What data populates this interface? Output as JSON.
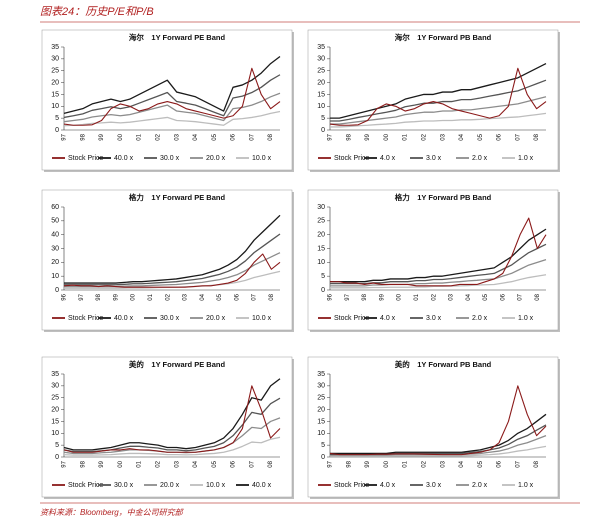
{
  "header": {
    "title": "图表24：历史P/E和P/B"
  },
  "chart_data": [
    {
      "type": "line",
      "title": "海尔　1Y Forward PE Band",
      "categories": [
        "97",
        null,
        "98",
        null,
        "99",
        null,
        "00",
        null,
        "01",
        null,
        "02",
        null,
        "03",
        null,
        "04",
        null,
        "05",
        null,
        "06",
        null,
        "07",
        null,
        "08",
        null
      ],
      "ylim": [
        0,
        35
      ],
      "yticks": [
        0,
        5,
        10,
        15,
        20,
        25,
        30,
        35
      ],
      "series": [
        {
          "name": "Stock Price",
          "color": "#8b1a1a",
          "values": [
            2.5,
            2,
            2,
            2.2,
            4,
            9,
            11,
            10,
            8,
            9,
            11,
            12,
            11,
            9,
            8,
            7,
            6,
            5,
            6,
            10,
            26,
            15,
            9,
            12
          ]
        },
        {
          "name": "40.0 x",
          "color": "#1a1a1a",
          "values": [
            7,
            8,
            9,
            11,
            12,
            13,
            12,
            13,
            15,
            17,
            19,
            21,
            16,
            15,
            14,
            12,
            10,
            8,
            18,
            19,
            21,
            24,
            28,
            31
          ]
        },
        {
          "name": "30.0 x",
          "color": "#555555",
          "values": [
            5.3,
            6,
            6.8,
            8.3,
            9,
            9.8,
            9,
            9.8,
            11.3,
            12.8,
            14.3,
            15.8,
            12,
            11.3,
            10.5,
            9,
            7.5,
            6,
            13.5,
            14.3,
            15.8,
            18,
            21,
            23.3
          ]
        },
        {
          "name": "20.0 x",
          "color": "#8c8c8c",
          "values": [
            3.5,
            4,
            4.5,
            5.5,
            6,
            6.5,
            6,
            6.5,
            7.5,
            8.5,
            9.5,
            10.5,
            8,
            7.5,
            7,
            6,
            5,
            4,
            9,
            9.5,
            10.5,
            12,
            14,
            15.5
          ]
        },
        {
          "name": "10.0 x",
          "color": "#bdbdbd",
          "values": [
            1.8,
            2,
            2.3,
            2.8,
            3,
            3.3,
            3,
            3.3,
            3.8,
            4.3,
            4.8,
            5.3,
            4,
            3.8,
            3.5,
            3,
            2.5,
            2,
            4.5,
            4.8,
            5.3,
            6,
            7,
            7.8
          ]
        }
      ]
    },
    {
      "type": "line",
      "title": "海尔　1Y Forward PB Band",
      "categories": [
        "97",
        null,
        "98",
        null,
        "99",
        null,
        "00",
        null,
        "01",
        null,
        "02",
        null,
        "03",
        null,
        "04",
        null,
        "05",
        null,
        "06",
        null,
        "07",
        null,
        "08",
        null
      ],
      "ylim": [
        0,
        35
      ],
      "yticks": [
        0,
        5,
        10,
        15,
        20,
        25,
        30,
        35
      ],
      "series": [
        {
          "name": "Stock Price",
          "color": "#8b1a1a",
          "values": [
            2.5,
            2,
            2,
            2.2,
            4,
            9,
            11,
            10,
            8,
            9,
            11,
            12,
            11,
            9,
            8,
            7,
            6,
            5,
            6,
            10,
            26,
            15,
            9,
            12
          ]
        },
        {
          "name": "4.0 x",
          "color": "#1a1a1a",
          "values": [
            5,
            5,
            6,
            7,
            8,
            9,
            10,
            11,
            13,
            14,
            15,
            15,
            16,
            16,
            17,
            17,
            18,
            19,
            20,
            21,
            22,
            24,
            26,
            28
          ]
        },
        {
          "name": "3.0 x",
          "color": "#555555",
          "values": [
            3.8,
            3.8,
            4.5,
            5.3,
            6,
            6.8,
            7.5,
            8.3,
            9.8,
            10.5,
            11.3,
            11.3,
            12,
            12,
            12.8,
            12.8,
            13.5,
            14.3,
            15,
            15.8,
            16.5,
            18,
            19.5,
            21
          ]
        },
        {
          "name": "2.0 x",
          "color": "#8c8c8c",
          "values": [
            2.5,
            2.5,
            3,
            3.5,
            4,
            4.5,
            5,
            5.5,
            6.5,
            7,
            7.5,
            7.5,
            8,
            8,
            8.5,
            8.5,
            9,
            9.5,
            10,
            10.5,
            11,
            12,
            13,
            14
          ]
        },
        {
          "name": "1.0 x",
          "color": "#bdbdbd",
          "values": [
            1.3,
            1.3,
            1.5,
            1.8,
            2,
            2.3,
            2.5,
            2.8,
            3.3,
            3.5,
            3.8,
            3.8,
            4,
            4,
            4.3,
            4.3,
            4.5,
            4.8,
            5,
            5.3,
            5.5,
            6,
            6.5,
            7
          ]
        }
      ]
    },
    {
      "type": "line",
      "title": "格力　1Y Forward PE Band",
      "categories": [
        "96",
        null,
        "97",
        null,
        "98",
        null,
        "99",
        null,
        "00",
        null,
        "01",
        null,
        "02",
        null,
        "03",
        null,
        "04",
        null,
        "05",
        null,
        "06",
        null,
        "07",
        null,
        "08",
        null
      ],
      "ylim": [
        0,
        60
      ],
      "yticks": [
        0,
        10,
        20,
        30,
        40,
        50,
        60
      ],
      "series": [
        {
          "name": "Stock Price",
          "color": "#8b1a1a",
          "values": [
            3,
            3.5,
            3,
            3,
            2.5,
            3,
            2.5,
            2,
            2,
            2,
            2,
            2,
            2,
            2,
            2,
            2.5,
            3,
            3,
            4,
            5,
            7,
            12,
            20,
            26,
            15,
            20
          ]
        },
        {
          "name": "40.0 x",
          "color": "#1a1a1a",
          "values": [
            5,
            5,
            5,
            5,
            5,
            5,
            5,
            5.5,
            6,
            6,
            6.5,
            7,
            7.5,
            8,
            9,
            10,
            11,
            13,
            15,
            18,
            22,
            28,
            36,
            42,
            48,
            54
          ]
        },
        {
          "name": "30.0 x",
          "color": "#555555",
          "values": [
            3.8,
            3.8,
            3.8,
            3.8,
            3.8,
            3.8,
            3.8,
            4.1,
            4.5,
            4.5,
            4.9,
            5.3,
            5.6,
            6,
            6.8,
            7.5,
            8.3,
            9.8,
            11.3,
            13.5,
            16.5,
            21,
            27,
            31.5,
            36,
            40.5
          ]
        },
        {
          "name": "20.0 x",
          "color": "#8c8c8c",
          "values": [
            2.5,
            2.5,
            2.5,
            2.5,
            2.5,
            2.5,
            2.5,
            2.8,
            3,
            3,
            3.3,
            3.5,
            3.8,
            4,
            4.5,
            5,
            5.5,
            6.5,
            7.5,
            9,
            11,
            14,
            18,
            21,
            24,
            27
          ]
        },
        {
          "name": "10.0 x",
          "color": "#bdbdbd",
          "values": [
            1.3,
            1.3,
            1.3,
            1.3,
            1.3,
            1.3,
            1.3,
            1.4,
            1.5,
            1.5,
            1.6,
            1.8,
            1.9,
            2,
            2.3,
            2.5,
            2.8,
            3.3,
            3.8,
            4.5,
            5.5,
            7,
            9,
            10.5,
            12,
            13.5
          ]
        }
      ]
    },
    {
      "type": "line",
      "title": "格力　1Y Forward PB Band",
      "categories": [
        "96",
        null,
        "97",
        null,
        "98",
        null,
        "99",
        null,
        "00",
        null,
        "01",
        null,
        "02",
        null,
        "03",
        null,
        "04",
        null,
        "05",
        null,
        "06",
        null,
        "07",
        null,
        "08",
        null
      ],
      "ylim": [
        0,
        30
      ],
      "yticks": [
        0,
        5,
        10,
        15,
        20,
        25,
        30
      ],
      "series": [
        {
          "name": "Stock Price",
          "color": "#8b1a1a",
          "values": [
            3,
            3,
            2.5,
            2.5,
            2,
            2.5,
            2,
            2,
            2,
            2,
            1.5,
            1.5,
            1.5,
            1.5,
            1.5,
            2,
            2,
            2,
            3,
            4,
            6,
            12,
            20,
            26,
            15,
            20
          ]
        },
        {
          "name": "4.0 x",
          "color": "#1a1a1a",
          "values": [
            3,
            3,
            3,
            3,
            3,
            3.5,
            3.5,
            4,
            4,
            4,
            4.5,
            4.5,
            5,
            5,
            5.5,
            6,
            6.5,
            7,
            7.5,
            8,
            10,
            12,
            15,
            18,
            20,
            22
          ]
        },
        {
          "name": "3.0 x",
          "color": "#555555",
          "values": [
            2.3,
            2.3,
            2.3,
            2.3,
            2.3,
            2.6,
            2.6,
            3,
            3,
            3,
            3.4,
            3.4,
            3.8,
            3.8,
            4.1,
            4.5,
            4.9,
            5.3,
            5.6,
            6,
            7.5,
            9,
            11.3,
            13.5,
            15,
            16.5
          ]
        },
        {
          "name": "2.0 x",
          "color": "#8c8c8c",
          "values": [
            1.5,
            1.5,
            1.5,
            1.5,
            1.5,
            1.8,
            1.8,
            2,
            2,
            2,
            2.3,
            2.3,
            2.5,
            2.5,
            2.8,
            3,
            3.3,
            3.5,
            3.8,
            4,
            5,
            6,
            7.5,
            9,
            10,
            11
          ]
        },
        {
          "name": "1.0 x",
          "color": "#bdbdbd",
          "values": [
            0.8,
            0.8,
            0.8,
            0.8,
            0.8,
            0.9,
            0.9,
            1,
            1,
            1,
            1.1,
            1.1,
            1.3,
            1.3,
            1.4,
            1.5,
            1.6,
            1.8,
            1.9,
            2,
            2.5,
            3,
            3.8,
            4.5,
            5,
            5.5
          ]
        }
      ]
    },
    {
      "type": "line",
      "title": "美的　1Y Forward PE Band",
      "categories": [
        "97",
        null,
        "98",
        null,
        "99",
        null,
        "00",
        null,
        "01",
        null,
        "02",
        null,
        "03",
        null,
        "04",
        null,
        "05",
        null,
        "06",
        null,
        "07",
        null,
        "08",
        null
      ],
      "ylim": [
        0,
        35
      ],
      "yticks": [
        0,
        5,
        10,
        15,
        20,
        25,
        30,
        35
      ],
      "series": [
        {
          "name": "Stock Price",
          "color": "#8b1a1a",
          "values": [
            3,
            2,
            2,
            2,
            2.5,
            3,
            3,
            3.5,
            3,
            3,
            2.5,
            2,
            2,
            2,
            2,
            2.5,
            3,
            4,
            6,
            12,
            30,
            20,
            8,
            12
          ]
        },
        {
          "name": "30.0 x",
          "color": "#555555",
          "values": [
            3,
            2.3,
            2.3,
            2.3,
            2.6,
            3,
            3.8,
            4.5,
            4.5,
            4.1,
            3.8,
            3,
            3,
            2.6,
            3,
            3.8,
            4.5,
            6,
            9,
            13.5,
            18.8,
            18,
            22.5,
            24.8
          ]
        },
        {
          "name": "20.0 x",
          "color": "#8c8c8c",
          "values": [
            2,
            1.5,
            1.5,
            1.5,
            1.8,
            2,
            2.5,
            3,
            3,
            2.8,
            2.5,
            2,
            2,
            1.8,
            2,
            2.5,
            3,
            4,
            6,
            9,
            12.5,
            12,
            15,
            16.5
          ]
        },
        {
          "name": "10.0 x",
          "color": "#bdbdbd",
          "values": [
            1,
            0.8,
            0.8,
            0.8,
            0.9,
            1,
            1.3,
            1.5,
            1.5,
            1.4,
            1.3,
            1,
            1,
            0.9,
            1,
            1.3,
            1.5,
            2,
            3,
            4.5,
            6.3,
            6,
            7.5,
            8.3
          ]
        },
        {
          "name": "40.0 x",
          "color": "#1a1a1a",
          "values": [
            4,
            3,
            3,
            3,
            3.5,
            4,
            5,
            6,
            6,
            5.5,
            5,
            4,
            4,
            3.5,
            4,
            5,
            6,
            8,
            12,
            18,
            25,
            24,
            30,
            33
          ]
        }
      ]
    },
    {
      "type": "line",
      "title": "美的　1Y Forward PB Band",
      "categories": [
        "97",
        null,
        "98",
        null,
        "99",
        null,
        "00",
        null,
        "01",
        null,
        "02",
        null,
        "03",
        null,
        "04",
        null,
        "05",
        null,
        "06",
        null,
        "07",
        null,
        "08",
        null
      ],
      "ylim": [
        0,
        35
      ],
      "yticks": [
        0,
        5,
        10,
        15,
        20,
        25,
        30,
        35
      ],
      "series": [
        {
          "name": "Stock Price",
          "color": "#8b1a1a",
          "values": [
            1.5,
            1,
            1,
            1,
            1,
            1.2,
            1.2,
            1.3,
            1.3,
            1.3,
            1.2,
            1.1,
            1,
            1,
            1,
            1.5,
            2,
            3,
            6,
            15,
            30,
            18,
            9,
            13
          ]
        },
        {
          "name": "4.0 x",
          "color": "#1a1a1a",
          "values": [
            1.5,
            1.5,
            1.5,
            1.5,
            1.5,
            1.5,
            1.5,
            2,
            2,
            2,
            2,
            2,
            2,
            2,
            2,
            2.5,
            3,
            4,
            5,
            7,
            10,
            12,
            15,
            18
          ]
        },
        {
          "name": "3.0 x",
          "color": "#555555",
          "values": [
            1.1,
            1.1,
            1.1,
            1.1,
            1.1,
            1.1,
            1.1,
            1.5,
            1.5,
            1.5,
            1.5,
            1.5,
            1.5,
            1.5,
            1.5,
            1.9,
            2.3,
            3,
            3.8,
            5.3,
            7.5,
            9,
            11.3,
            13.5
          ]
        },
        {
          "name": "2.0 x",
          "color": "#8c8c8c",
          "values": [
            0.8,
            0.8,
            0.8,
            0.8,
            0.8,
            0.8,
            0.8,
            1,
            1,
            1,
            1,
            1,
            1,
            1,
            1,
            1.3,
            1.5,
            2,
            2.5,
            3.5,
            5,
            6,
            7.5,
            9
          ]
        },
        {
          "name": "1.0 x",
          "color": "#bdbdbd",
          "values": [
            0.4,
            0.4,
            0.4,
            0.4,
            0.4,
            0.4,
            0.4,
            0.5,
            0.5,
            0.5,
            0.5,
            0.5,
            0.5,
            0.5,
            0.5,
            0.6,
            0.8,
            1,
            1.3,
            1.8,
            2.5,
            3,
            3.8,
            4.5
          ]
        }
      ]
    }
  ],
  "footer": {
    "source": "资料来源：Bloomberg，中金公司研究部"
  }
}
